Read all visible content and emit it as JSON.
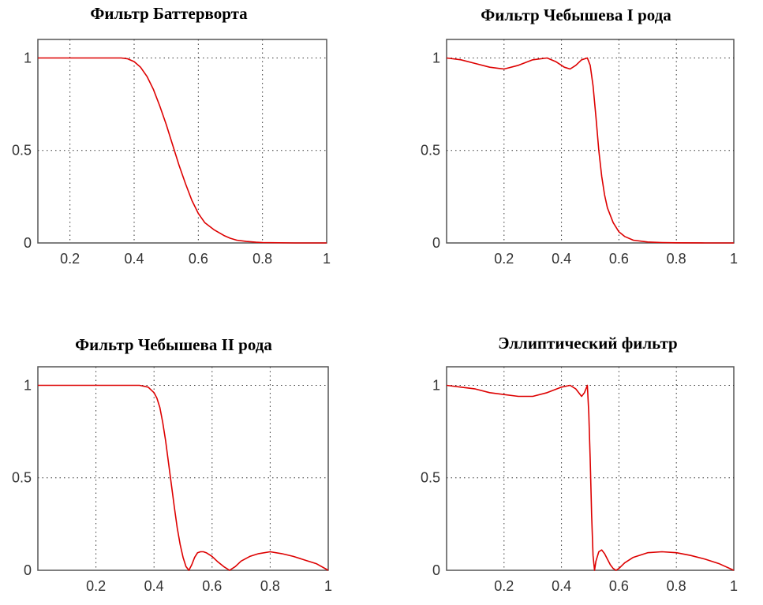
{
  "colors": {
    "curve": "#dd0000",
    "frame": "#555555",
    "grid": "#333333"
  },
  "chart_data": [
    {
      "type": "line",
      "title": "Фильтр Баттерворта",
      "xlim": [
        0.1,
        1.0
      ],
      "ylim": [
        0,
        1.1
      ],
      "xticks": [
        0.2,
        0.4,
        0.6,
        0.8,
        1.0
      ],
      "xtick_labels": [
        "0.2",
        "0.4",
        "0.6",
        "0.8",
        "1"
      ],
      "yticks": [
        0,
        0.5,
        1
      ],
      "ytick_labels": [
        "0",
        "0.5",
        "1"
      ],
      "grid": true,
      "series": [
        {
          "x": [
            0.1,
            0.2,
            0.3,
            0.36,
            0.38,
            0.4,
            0.42,
            0.44,
            0.46,
            0.48,
            0.5,
            0.52,
            0.54,
            0.56,
            0.58,
            0.6,
            0.62,
            0.65,
            0.68,
            0.7,
            0.72,
            0.75,
            0.78,
            0.8,
            0.9,
            1.0
          ],
          "y": [
            1.0,
            1.0,
            1.0,
            1.0,
            0.995,
            0.98,
            0.95,
            0.9,
            0.83,
            0.74,
            0.64,
            0.53,
            0.42,
            0.32,
            0.23,
            0.16,
            0.11,
            0.07,
            0.04,
            0.025,
            0.015,
            0.008,
            0.004,
            0.002,
            0.0,
            0.0
          ]
        }
      ]
    },
    {
      "type": "line",
      "title": "Фильтр Чебышева I рода",
      "xlim": [
        0.0,
        1.0
      ],
      "ylim": [
        0,
        1.1
      ],
      "xticks": [
        0.2,
        0.4,
        0.6,
        0.8,
        1.0
      ],
      "xtick_labels": [
        "0.2",
        "0.4",
        "0.6",
        "0.8",
        "1"
      ],
      "yticks": [
        0,
        0.5,
        1
      ],
      "ytick_labels": [
        "0",
        "0.5",
        "1"
      ],
      "grid": true,
      "series": [
        {
          "x": [
            0.0,
            0.05,
            0.1,
            0.15,
            0.2,
            0.25,
            0.3,
            0.35,
            0.38,
            0.41,
            0.43,
            0.45,
            0.47,
            0.49,
            0.5,
            0.51,
            0.52,
            0.53,
            0.54,
            0.55,
            0.56,
            0.58,
            0.6,
            0.62,
            0.65,
            0.7,
            0.75,
            0.8,
            0.9,
            1.0
          ],
          "y": [
            1.0,
            0.99,
            0.97,
            0.95,
            0.94,
            0.96,
            0.99,
            1.0,
            0.98,
            0.95,
            0.94,
            0.96,
            0.99,
            1.0,
            0.96,
            0.85,
            0.68,
            0.5,
            0.36,
            0.26,
            0.19,
            0.11,
            0.06,
            0.035,
            0.015,
            0.005,
            0.002,
            0.001,
            0.0,
            0.0
          ]
        }
      ]
    },
    {
      "type": "line",
      "title": "Фильтр Чебышева II рода",
      "xlim": [
        0.0,
        1.0
      ],
      "ylim": [
        0,
        1.1
      ],
      "xticks": [
        0.2,
        0.4,
        0.6,
        0.8,
        1.0
      ],
      "xtick_labels": [
        "0.2",
        "0.4",
        "0.6",
        "0.8",
        "1"
      ],
      "yticks": [
        0,
        0.5,
        1
      ],
      "ytick_labels": [
        "0",
        "0.5",
        "1"
      ],
      "grid": true,
      "series": [
        {
          "x": [
            0.0,
            0.1,
            0.2,
            0.3,
            0.35,
            0.38,
            0.4,
            0.41,
            0.42,
            0.43,
            0.44,
            0.45,
            0.46,
            0.47,
            0.48,
            0.49,
            0.5,
            0.51,
            0.52,
            0.53,
            0.54,
            0.55,
            0.56,
            0.57,
            0.58,
            0.6,
            0.62,
            0.64,
            0.66,
            0.68,
            0.7,
            0.73,
            0.76,
            0.8,
            0.84,
            0.88,
            0.92,
            0.96,
            1.0
          ],
          "y": [
            1.0,
            1.0,
            1.0,
            1.0,
            1.0,
            0.99,
            0.96,
            0.93,
            0.88,
            0.8,
            0.7,
            0.58,
            0.46,
            0.34,
            0.23,
            0.14,
            0.07,
            0.02,
            0.0,
            0.03,
            0.07,
            0.095,
            0.1,
            0.1,
            0.095,
            0.075,
            0.045,
            0.02,
            0.0,
            0.02,
            0.05,
            0.075,
            0.09,
            0.1,
            0.09,
            0.075,
            0.055,
            0.035,
            0.0
          ]
        }
      ]
    },
    {
      "type": "line",
      "title": "Эллиптический фильтр",
      "xlim": [
        0.0,
        1.0
      ],
      "ylim": [
        0,
        1.1
      ],
      "xticks": [
        0.2,
        0.4,
        0.6,
        0.8,
        1.0
      ],
      "xtick_labels": [
        "0.2",
        "0.4",
        "0.6",
        "0.8",
        "1"
      ],
      "yticks": [
        0,
        0.5,
        1
      ],
      "ytick_labels": [
        "0",
        "0.5",
        "1"
      ],
      "grid": true,
      "series": [
        {
          "x": [
            0.0,
            0.05,
            0.1,
            0.15,
            0.2,
            0.25,
            0.3,
            0.35,
            0.4,
            0.43,
            0.45,
            0.47,
            0.48,
            0.49,
            0.495,
            0.5,
            0.505,
            0.51,
            0.515,
            0.52,
            0.53,
            0.54,
            0.55,
            0.56,
            0.57,
            0.58,
            0.59,
            0.6,
            0.62,
            0.65,
            0.7,
            0.75,
            0.8,
            0.85,
            0.9,
            0.95,
            1.0
          ],
          "y": [
            1.0,
            0.99,
            0.98,
            0.96,
            0.95,
            0.94,
            0.94,
            0.96,
            0.99,
            1.0,
            0.98,
            0.94,
            0.96,
            1.0,
            0.85,
            0.6,
            0.3,
            0.08,
            0.0,
            0.05,
            0.1,
            0.11,
            0.09,
            0.06,
            0.03,
            0.01,
            0.0,
            0.01,
            0.04,
            0.07,
            0.095,
            0.1,
            0.095,
            0.08,
            0.06,
            0.035,
            0.0
          ]
        }
      ]
    }
  ]
}
